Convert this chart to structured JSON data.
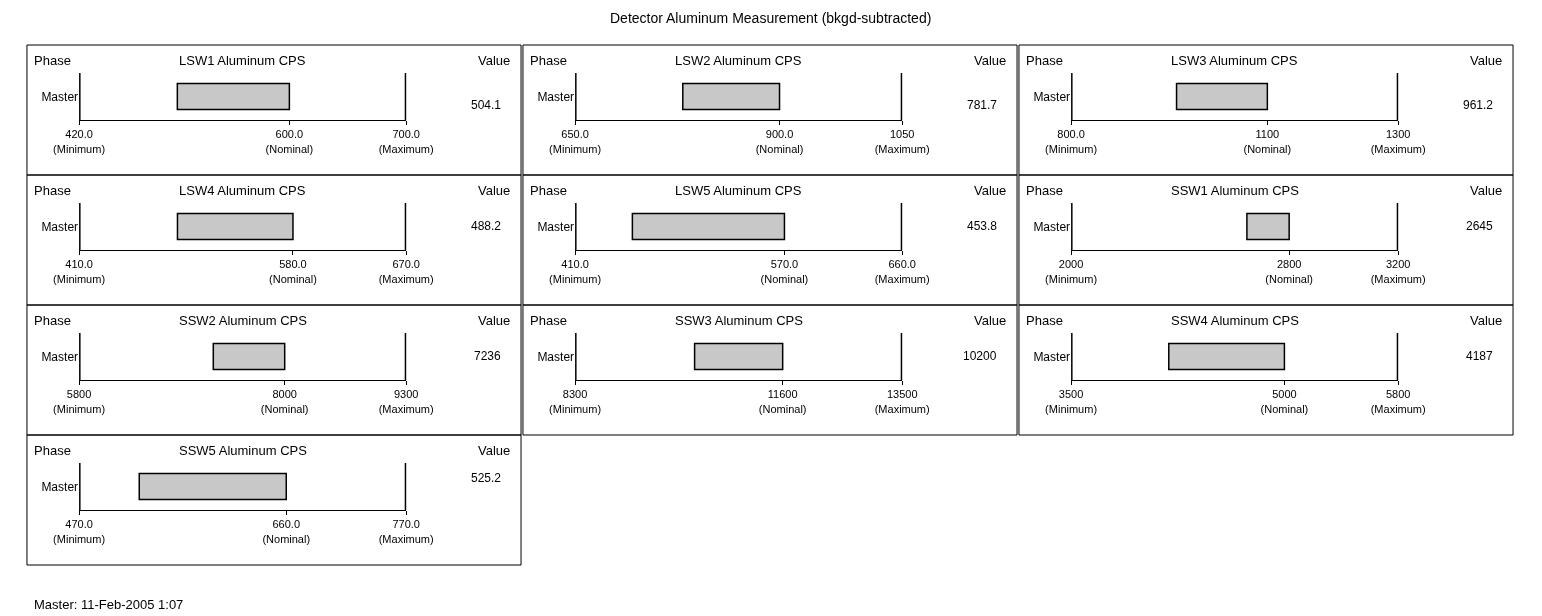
{
  "chart_data": [
    {
      "type": "bar",
      "orientation": "horizontal",
      "title": "LSW1 Aluminum CPS",
      "annotations": [
        "Phase",
        "Value",
        "504.1",
        "Detector Aluminum Measurement (bkgd-subtracted)"
      ],
      "categories": [
        "Master"
      ],
      "base": [
        504.1
      ],
      "values": [
        95.9
      ],
      "color": "#c8c8c8",
      "xlim": [
        420,
        700
      ],
      "xticks": [
        {
          "value": 420,
          "label": "420.0\n(Minimum)"
        },
        {
          "value": 600,
          "label": "600.0\n(Nominal)"
        },
        {
          "value": 700,
          "label": "700.0\n(Maximum)"
        }
      ],
      "ref_lines": [
        {
          "axis": "x",
          "value": 420,
          "color": "#000000"
        },
        {
          "axis": "x",
          "value": 700,
          "color": "#000000"
        }
      ]
    },
    {
      "type": "bar",
      "orientation": "horizontal",
      "title": "LSW2 Aluminum CPS",
      "annotations": [
        "Phase",
        "Value",
        "781.7"
      ],
      "categories": [
        "Master"
      ],
      "base": [
        781.7
      ],
      "values": [
        118.3
      ],
      "color": "#c8c8c8",
      "xlim": [
        650,
        1050
      ],
      "xticks": [
        {
          "value": 650,
          "label": "650.0\n(Minimum)"
        },
        {
          "value": 900,
          "label": "900.0\n(Nominal)"
        },
        {
          "value": 1050,
          "label": "1050\n(Maximum)"
        }
      ],
      "ref_lines": [
        {
          "axis": "x",
          "value": 650,
          "color": "#000000"
        },
        {
          "axis": "x",
          "value": 1050,
          "color": "#000000"
        }
      ]
    },
    {
      "type": "bar",
      "orientation": "horizontal",
      "title": "LSW3 Aluminum CPS",
      "annotations": [
        "Phase",
        "Value",
        "961.2"
      ],
      "categories": [
        "Master"
      ],
      "base": [
        961.2
      ],
      "values": [
        138.8
      ],
      "color": "#c8c8c8",
      "xlim": [
        800,
        1300
      ],
      "xticks": [
        {
          "value": 800,
          "label": "800.0\n(Minimum)"
        },
        {
          "value": 1100,
          "label": "1100\n(Nominal)"
        },
        {
          "value": 1300,
          "label": "1300\n(Maximum)"
        }
      ],
      "ref_lines": [
        {
          "axis": "x",
          "value": 800,
          "color": "#000000"
        },
        {
          "axis": "x",
          "value": 1300,
          "color": "#000000"
        }
      ]
    },
    {
      "type": "bar",
      "orientation": "horizontal",
      "title": "LSW4 Aluminum CPS",
      "annotations": [
        "Phase",
        "Value",
        "488.2"
      ],
      "categories": [
        "Master"
      ],
      "base": [
        488.2
      ],
      "values": [
        91.8
      ],
      "color": "#c8c8c8",
      "xlim": [
        410,
        670
      ],
      "xticks": [
        {
          "value": 410,
          "label": "410.0\n(Minimum)"
        },
        {
          "value": 580,
          "label": "580.0\n(Nominal)"
        },
        {
          "value": 670,
          "label": "670.0\n(Maximum)"
        }
      ],
      "ref_lines": [
        {
          "axis": "x",
          "value": 410,
          "color": "#000000"
        },
        {
          "axis": "x",
          "value": 670,
          "color": "#000000"
        }
      ]
    },
    {
      "type": "bar",
      "orientation": "horizontal",
      "title": "LSW5 Aluminum CPS",
      "annotations": [
        "Phase",
        "Value",
        "453.8"
      ],
      "categories": [
        "Master"
      ],
      "base": [
        453.8
      ],
      "values": [
        116.2
      ],
      "color": "#c8c8c8",
      "xlim": [
        410,
        660
      ],
      "xticks": [
        {
          "value": 410,
          "label": "410.0\n(Minimum)"
        },
        {
          "value": 570,
          "label": "570.0\n(Nominal)"
        },
        {
          "value": 660,
          "label": "660.0\n(Maximum)"
        }
      ],
      "ref_lines": [
        {
          "axis": "x",
          "value": 410,
          "color": "#000000"
        },
        {
          "axis": "x",
          "value": 660,
          "color": "#000000"
        }
      ]
    },
    {
      "type": "bar",
      "orientation": "horizontal",
      "title": "SSW1 Aluminum CPS",
      "annotations": [
        "Phase",
        "Value",
        "2645"
      ],
      "categories": [
        "Master"
      ],
      "base": [
        2645
      ],
      "values": [
        155
      ],
      "color": "#c8c8c8",
      "xlim": [
        2000,
        3200
      ],
      "xticks": [
        {
          "value": 2000,
          "label": "2000\n(Minimum)"
        },
        {
          "value": 2800,
          "label": "2800\n(Nominal)"
        },
        {
          "value": 3200,
          "label": "3200\n(Maximum)"
        }
      ],
      "ref_lines": [
        {
          "axis": "x",
          "value": 2000,
          "color": "#000000"
        },
        {
          "axis": "x",
          "value": 3200,
          "color": "#000000"
        }
      ]
    },
    {
      "type": "bar",
      "orientation": "horizontal",
      "title": "SSW2 Aluminum CPS",
      "annotations": [
        "Phase",
        "Value",
        "7236"
      ],
      "categories": [
        "Master"
      ],
      "base": [
        7236
      ],
      "values": [
        764
      ],
      "color": "#c8c8c8",
      "xlim": [
        5800,
        9300
      ],
      "xticks": [
        {
          "value": 5800,
          "label": "5800\n(Minimum)"
        },
        {
          "value": 8000,
          "label": "8000\n(Nominal)"
        },
        {
          "value": 9300,
          "label": "9300\n(Maximum)"
        }
      ],
      "ref_lines": [
        {
          "axis": "x",
          "value": 5800,
          "color": "#000000"
        },
        {
          "axis": "x",
          "value": 9300,
          "color": "#000000"
        }
      ]
    },
    {
      "type": "bar",
      "orientation": "horizontal",
      "title": "SSW3 Aluminum CPS",
      "annotations": [
        "Phase",
        "Value",
        "10200"
      ],
      "categories": [
        "Master"
      ],
      "base": [
        10200
      ],
      "values": [
        1400
      ],
      "color": "#c8c8c8",
      "xlim": [
        8300,
        13500
      ],
      "xticks": [
        {
          "value": 8300,
          "label": "8300\n(Minimum)"
        },
        {
          "value": 11600,
          "label": "11600\n(Nominal)"
        },
        {
          "value": 13500,
          "label": "13500\n(Maximum)"
        }
      ],
      "ref_lines": [
        {
          "axis": "x",
          "value": 8300,
          "color": "#000000"
        },
        {
          "axis": "x",
          "value": 13500,
          "color": "#000000"
        }
      ]
    },
    {
      "type": "bar",
      "orientation": "horizontal",
      "title": "SSW4 Aluminum CPS",
      "annotations": [
        "Phase",
        "Value",
        "4187"
      ],
      "categories": [
        "Master"
      ],
      "base": [
        4187
      ],
      "values": [
        813
      ],
      "color": "#c8c8c8",
      "xlim": [
        3500,
        5800
      ],
      "xticks": [
        {
          "value": 3500,
          "label": "3500\n(Minimum)"
        },
        {
          "value": 5000,
          "label": "5000\n(Nominal)"
        },
        {
          "value": 5800,
          "label": "5800\n(Maximum)"
        }
      ],
      "ref_lines": [
        {
          "axis": "x",
          "value": 3500,
          "color": "#000000"
        },
        {
          "axis": "x",
          "value": 5800,
          "color": "#000000"
        }
      ]
    },
    {
      "type": "bar",
      "orientation": "horizontal",
      "title": "SSW5 Aluminum CPS",
      "annotations": [
        "Phase",
        "Value",
        "525.2",
        "Master: 11-Feb-2005 1:07"
      ],
      "categories": [
        "Master"
      ],
      "base": [
        525.2
      ],
      "values": [
        134.8
      ],
      "color": "#c8c8c8",
      "xlim": [
        470,
        770
      ],
      "xticks": [
        {
          "value": 470,
          "label": "470.0\n(Minimum)"
        },
        {
          "value": 660,
          "label": "660.0\n(Nominal)"
        },
        {
          "value": 770,
          "label": "770.0\n(Maximum)"
        }
      ],
      "ref_lines": [
        {
          "axis": "x",
          "value": 470,
          "color": "#000000"
        },
        {
          "axis": "x",
          "value": 770,
          "color": "#000000"
        }
      ]
    }
  ]
}
